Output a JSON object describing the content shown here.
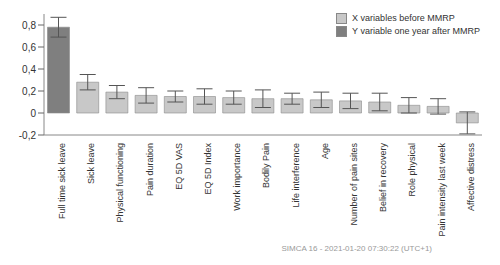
{
  "chart_data": {
    "type": "bar",
    "categories": [
      "Full time sick leave",
      "Sick leave",
      "Physical functioning",
      "Pain duration",
      "EQ 5D VAS",
      "EQ 5D Index",
      "Work importance",
      "Bodily Pain",
      "Life interference",
      "Age",
      "Number of pain sites",
      "Belief in recovery",
      "Role physical",
      "Pain intensity last week",
      "Affective distress"
    ],
    "series": [
      {
        "name": "X variables before MMRP",
        "color": "#c8c8c8",
        "values": [
          null,
          0.28,
          0.19,
          0.16,
          0.15,
          0.15,
          0.14,
          0.13,
          0.13,
          0.12,
          0.11,
          0.1,
          0.07,
          0.06,
          -0.09
        ],
        "errors": [
          null,
          0.07,
          0.06,
          0.07,
          0.05,
          0.07,
          0.06,
          0.08,
          0.05,
          0.07,
          0.07,
          0.08,
          0.07,
          0.07,
          0.1
        ]
      },
      {
        "name": "Y variable one year after MMRP",
        "color": "#7f7f7f",
        "values": [
          0.78,
          null,
          null,
          null,
          null,
          null,
          null,
          null,
          null,
          null,
          null,
          null,
          null,
          null,
          null
        ],
        "errors": [
          0.09,
          null,
          null,
          null,
          null,
          null,
          null,
          null,
          null,
          null,
          null,
          null,
          null,
          null,
          null
        ]
      }
    ],
    "ylim": [
      -0.2,
      0.9
    ],
    "yticks": [
      {
        "value": -0.2,
        "label": "-0,2"
      },
      0,
      {
        "value": 0.2,
        "label": "0,2"
      },
      {
        "value": 0.4,
        "label": "0,4"
      },
      {
        "value": 0.6,
        "label": "0,6"
      },
      {
        "value": 0.8,
        "label": "0,8"
      }
    ],
    "grid": false,
    "legend": "upper right",
    "annotations": [
      "SIMCA 16 - 2021-01-20 07:30:22 (UTC+1)"
    ]
  }
}
